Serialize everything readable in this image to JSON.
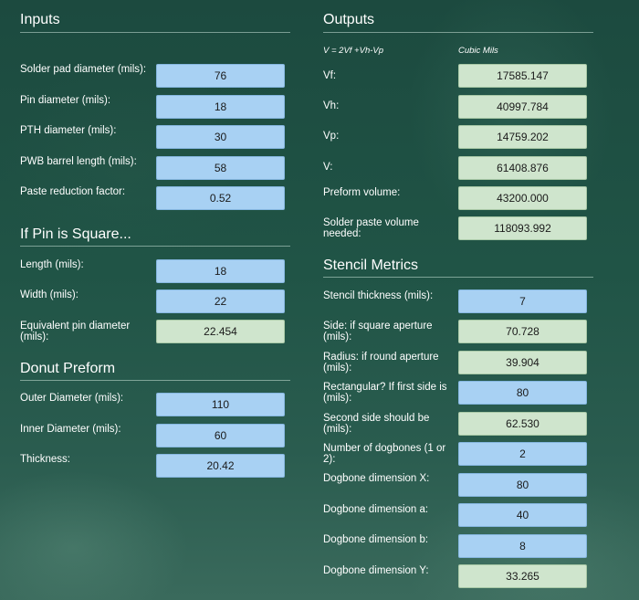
{
  "inputs": {
    "title": "Inputs",
    "solder_pad_diameter": {
      "label": "Solder pad diameter (mils):",
      "value": "76"
    },
    "pin_diameter": {
      "label": "Pin diameter (mils):",
      "value": "18"
    },
    "pth_diameter": {
      "label": "PTH diameter (mils):",
      "value": "30"
    },
    "pwb_barrel_length": {
      "label": "PWB barrel length (mils):",
      "value": "58"
    },
    "paste_reduction_factor": {
      "label": "Paste reduction factor:",
      "value": "0.52"
    }
  },
  "square_pin": {
    "title": "If Pin is Square...",
    "length": {
      "label": "Length (mils):",
      "value": "18"
    },
    "width": {
      "label": "Width (mils):",
      "value": "22"
    },
    "equivalent_pin_diameter": {
      "label_line1": "Equivalent pin diameter",
      "label_line2": "(mils):",
      "value": "22.454"
    }
  },
  "donut_preform": {
    "title": "Donut Preform",
    "outer_diameter": {
      "label": "Outer Diameter (mils):",
      "value": "110"
    },
    "inner_diameter": {
      "label": "Inner Diameter (mils):",
      "value": "60"
    },
    "thickness": {
      "label": "Thickness:",
      "value": "20.42"
    }
  },
  "outputs": {
    "title": "Outputs",
    "formula": "V = 2Vf +Vh-Vp",
    "units": "Cubic Mils",
    "vf": {
      "label": "Vf:",
      "value": "17585.147"
    },
    "vh": {
      "label": "Vh:",
      "value": "40997.784"
    },
    "vp": {
      "label": "Vp:",
      "value": "14759.202"
    },
    "v": {
      "label": "V:",
      "value": "61408.876"
    },
    "preform_volume": {
      "label": "Preform volume:",
      "value": "43200.000"
    },
    "solder_paste_volume": {
      "label_line1": "Solder paste volume",
      "label_line2": "needed:",
      "value": "118093.992"
    }
  },
  "stencil": {
    "title": "Stencil Metrics",
    "thickness": {
      "label": "Stencil thickness (mils):",
      "value": "7"
    },
    "square_side": {
      "label_line1": "Side: if square aperture",
      "label_line2": "(mils):",
      "value": "70.728"
    },
    "round_radius": {
      "label_line1": "Radius: if round aperture",
      "label_line2": "(mils):",
      "value": "39.904"
    },
    "rect_first_side": {
      "label_line1": "Rectangular? If first side is",
      "label_line2": "(mils):",
      "value": "80"
    },
    "rect_second_side": {
      "label_line1": "Second side should be",
      "label_line2": "(mils):",
      "value": "62.530"
    },
    "dogbone_count": {
      "label_line1": "Number of dogbones (1 or",
      "label_line2": "2):",
      "value": "2"
    },
    "dogbone_x": {
      "label": "Dogbone dimension X:",
      "value": "80"
    },
    "dogbone_a": {
      "label": "Dogbone dimension a:",
      "value": "40"
    },
    "dogbone_b": {
      "label": "Dogbone dimension b:",
      "value": "8"
    },
    "dogbone_y": {
      "label": "Dogbone dimension Y:",
      "value": "33.265"
    }
  }
}
